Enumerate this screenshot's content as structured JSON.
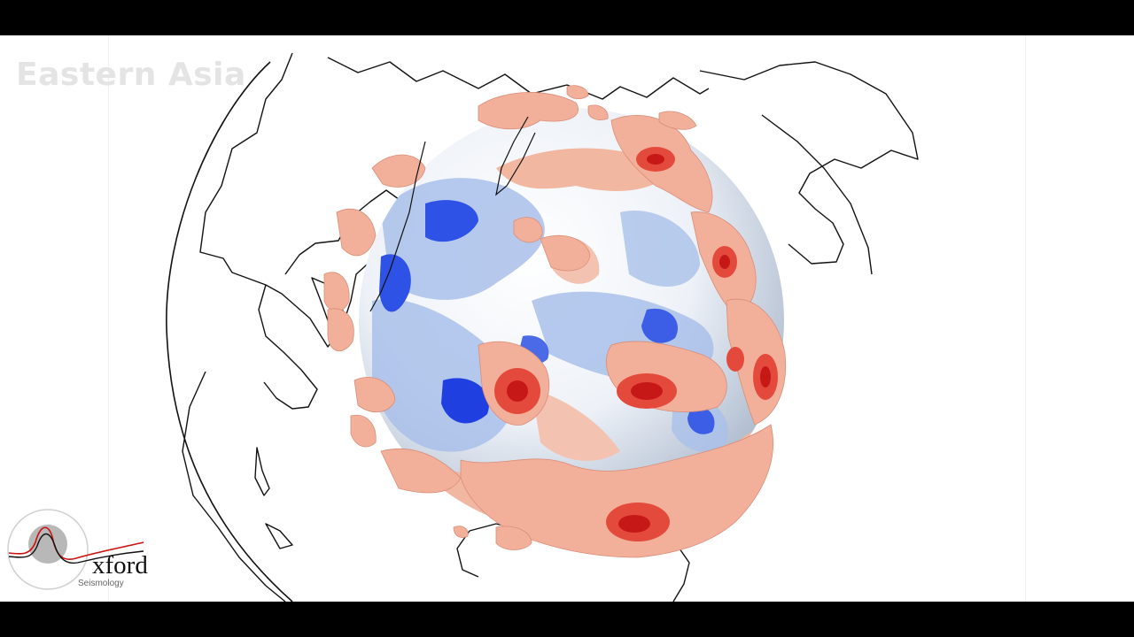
{
  "overlay": {
    "region_title": "Eastern Asia"
  },
  "logo": {
    "wordmark": "xford",
    "subtitle": "Seismology"
  },
  "colors": {
    "background": "#ffffff",
    "letterbox": "#000000",
    "coastline": "#111111",
    "fast_anomaly_strong": "#1f3fe0",
    "fast_anomaly_weak": "#a9c0ea",
    "slow_anomaly_weak": "#f2b7a0",
    "slow_anomaly_strong": "#d81818",
    "logo_trace_red": "#cc1111",
    "logo_trace_black": "#111111"
  }
}
